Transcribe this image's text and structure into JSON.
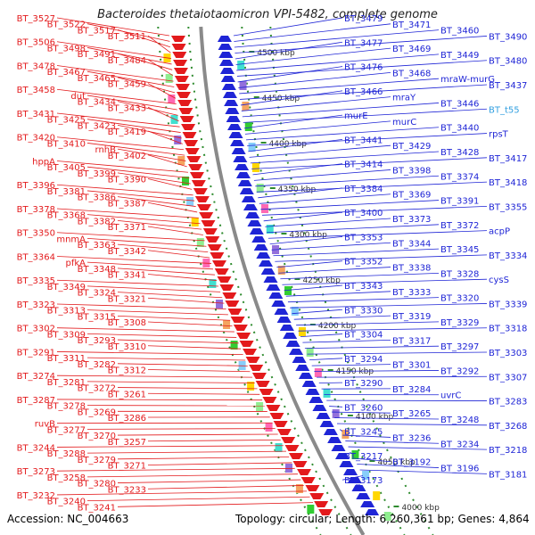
{
  "header": {
    "title": "Bacteroides thetaiotaomicron VPI-5482, complete genome"
  },
  "footer": {
    "accession": "Accession: NC_004663",
    "summary": "Topology: circular; Length: 6,260,361 bp; Genes: 4,864"
  },
  "colors": {
    "left_strand": "#e31a1c",
    "right_strand": "#1f25d6",
    "rna_label": "#33a0e0",
    "backbone": "#8a8a8a",
    "tick": "#2e8b2e"
  },
  "scale_ticks": [
    "4500 kbp",
    "4450 kbp",
    "4400 kbp",
    "4350 kbp",
    "4300 kbp",
    "4250 kbp",
    "4200 kbp",
    "4150 kbp",
    "4100 kbp",
    "4050 kbp",
    "4000 kbp"
  ],
  "left_labels": [
    "BT_3527",
    "BT_3522",
    "BT_3517",
    "BT_3511",
    "BT_3506",
    "BT_3498",
    "BT_3491",
    "BT_3484",
    "BT_3478",
    "BT_3467",
    "BT_3465",
    "BT_3459",
    "BT_3458",
    "dut",
    "BT_3434",
    "BT_3433",
    "BT_3431",
    "BT_3425",
    "BT_3423",
    "BT_3419",
    "BT_3420",
    "BT_3410",
    "rnhB",
    "BT_3402",
    "hppA",
    "BT_3405",
    "BT_3399",
    "BT_3390",
    "BT_3396",
    "BT_3381",
    "BT_3386",
    "BT_3387",
    "BT_3378",
    "BT_3368",
    "BT_3382",
    "BT_3371",
    "BT_3350",
    "mnmA",
    "BT_3363",
    "BT_3342",
    "BT_3364",
    "pfkA",
    "BT_3348",
    "BT_3341",
    "BT_3335",
    "BT_3349",
    "BT_3324",
    "BT_3321",
    "BT_3323",
    "BT_3313",
    "BT_3315",
    "BT_3308",
    "BT_3302",
    "BT_3309",
    "BT_3293",
    "BT_3310",
    "BT_3291",
    "BT_3311",
    "BT_3282",
    "BT_3312",
    "BT_3274",
    "BT_3281",
    "BT_3272",
    "BT_3261",
    "BT_3287",
    "BT_3278",
    "BT_3269",
    "BT_3286",
    "ruvB",
    "BT_3277",
    "BT_3270",
    "BT_3257",
    "BT_3244",
    "BT_3288",
    "BT_3279",
    "BT_3271",
    "BT_3273",
    "BT_3258",
    "BT_3280",
    "BT_3233",
    "BT_3232",
    "BT_3240",
    "BT_3241"
  ],
  "right_labels": [
    "BT_3479",
    "BT_3471",
    "BT_3460",
    "BT_3490",
    "BT_3477",
    "BT_3469",
    "BT_3449",
    "BT_3480",
    "BT_3476",
    "BT_3468",
    "mraW-murG",
    "BT_3437",
    "BT_3466",
    "mraY",
    "BT_3446",
    "BT_t55",
    "murE",
    "murC",
    "BT_3440",
    "rpsT",
    "BT_3441",
    "BT_3429",
    "BT_3428",
    "BT_3417",
    "BT_3414",
    "BT_3398",
    "BT_3374",
    "BT_3418",
    "BT_3384",
    "BT_3369",
    "BT_3391",
    "BT_3355",
    "BT_3400",
    "BT_3373",
    "BT_3372",
    "acpP",
    "BT_3353",
    "BT_3344",
    "BT_3345",
    "BT_3334",
    "BT_3352",
    "BT_3338",
    "BT_3328",
    "cysS",
    "BT_3343",
    "BT_3333",
    "BT_3320",
    "BT_3339",
    "BT_3330",
    "BT_3319",
    "BT_3329",
    "BT_3318",
    "BT_3304",
    "BT_3317",
    "BT_3297",
    "BT_3303",
    "BT_3294",
    "BT_3301",
    "BT_3292",
    "BT_3307",
    "BT_3290",
    "BT_3284",
    "uvrC",
    "BT_3283",
    "BT_3260",
    "BT_3265",
    "BT_3248",
    "BT_3268",
    "BT_3245",
    "BT_3236",
    "BT_3234",
    "BT_3218",
    "BT_3217",
    "BT_3192",
    "BT_3196",
    "BT_3181",
    "BT_3173"
  ]
}
